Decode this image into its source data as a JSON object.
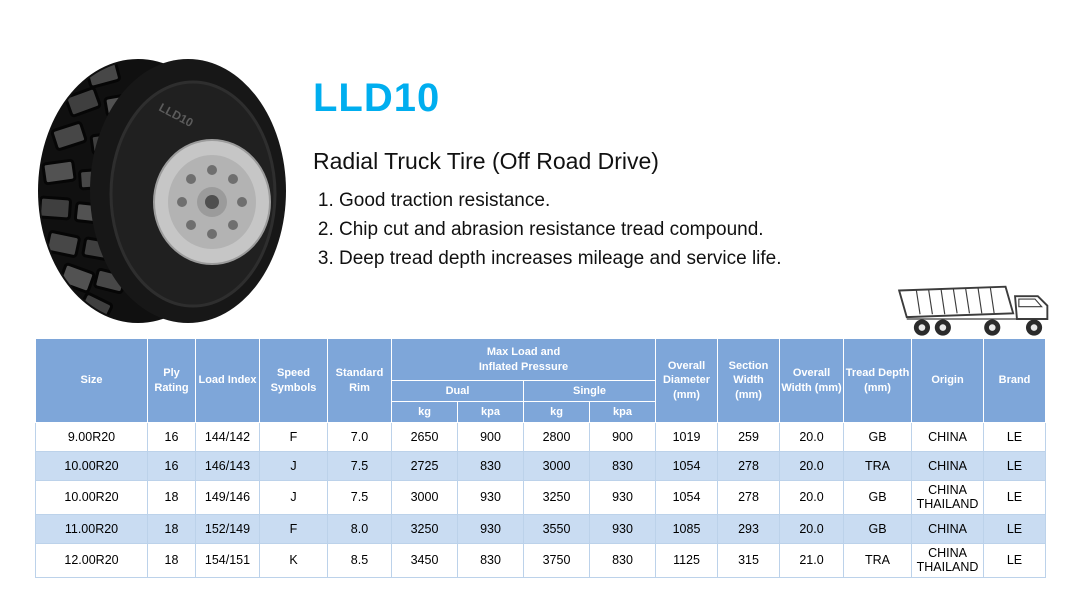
{
  "colors": {
    "accent": "#00AEEF",
    "header_bg": "#7EA6D9",
    "row_alt_bg": "#C9DCF2",
    "body_border": "#BCD2EA"
  },
  "product": {
    "model": "LLD10",
    "subtitle": "Radial Truck Tire (Off Road Drive)",
    "features": [
      "Good traction resistance.",
      "Chip cut and abrasion resistance tread compound.",
      "Deep tread depth increases mileage and service life."
    ]
  },
  "icons": {
    "tire": "tire-photo",
    "truck": "dump-truck-line-art"
  },
  "table": {
    "headers": {
      "size": "Size",
      "ply_rating": "Ply Rating",
      "load_index": "Load Index",
      "speed_symbols": "Speed Symbols",
      "standard_rim": "Standard Rim",
      "max_load_line1": "Max Load and",
      "max_load_line2": "Inflated Pressure",
      "dual": "Dual",
      "single": "Single",
      "kg": "kg",
      "kpa": "kpa",
      "overall_diameter": "Overall Diameter (mm)",
      "section_width": "Section Width (mm)",
      "overall_width": "Overall Width (mm)",
      "tread_depth": "Tread Depth (mm)",
      "origin": "Origin",
      "brand": "Brand"
    },
    "rows": [
      [
        "9.00R20",
        "16",
        "144/142",
        "F",
        "7.0",
        "2650",
        "900",
        "2800",
        "900",
        "1019",
        "259",
        "20.0",
        "GB",
        "CHINA",
        "LE"
      ],
      [
        "10.00R20",
        "16",
        "146/143",
        "J",
        "7.5",
        "2725",
        "830",
        "3000",
        "830",
        "1054",
        "278",
        "20.0",
        "TRA",
        "CHINA",
        "LE"
      ],
      [
        "10.00R20",
        "18",
        "149/146",
        "J",
        "7.5",
        "3000",
        "930",
        "3250",
        "930",
        "1054",
        "278",
        "20.0",
        "GB",
        "CHINA THAILAND",
        "LE"
      ],
      [
        "11.00R20",
        "18",
        "152/149",
        "F",
        "8.0",
        "3250",
        "930",
        "3550",
        "930",
        "1085",
        "293",
        "20.0",
        "GB",
        "CHINA",
        "LE"
      ],
      [
        "12.00R20",
        "18",
        "154/151",
        "K",
        "8.5",
        "3450",
        "830",
        "3750",
        "830",
        "1125",
        "315",
        "21.0",
        "TRA",
        "CHINA THAILAND",
        "LE"
      ]
    ]
  }
}
